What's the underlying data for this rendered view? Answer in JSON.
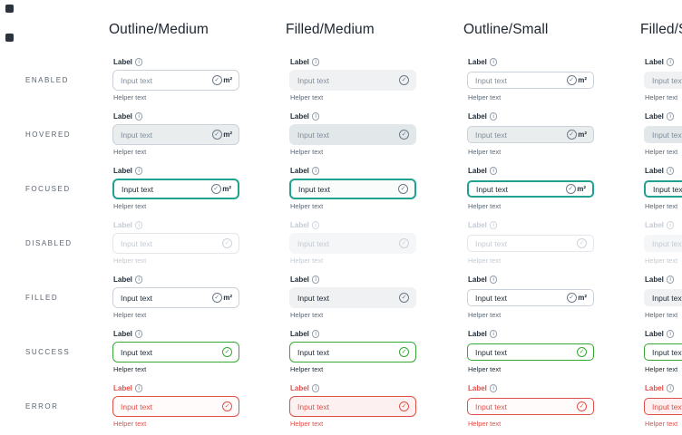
{
  "canvas": {
    "corner_icons": [
      {
        "name": "canvas-mark-icon"
      },
      {
        "name": "canvas-mark-icon"
      }
    ]
  },
  "columns": [
    {
      "header": "Outline/Medium",
      "variant": "outline",
      "size": "medium",
      "show_unit_suffix": true
    },
    {
      "header": "Filled/Medium",
      "variant": "filled",
      "size": "medium",
      "show_unit_suffix": false
    },
    {
      "header": "Outline/Small",
      "variant": "outline",
      "size": "small",
      "show_unit_suffix": true
    },
    {
      "header": "Filled/Small",
      "variant": "filled",
      "size": "small",
      "show_unit_suffix": false
    }
  ],
  "rows": [
    {
      "label": "ENABLED",
      "state": "enabled"
    },
    {
      "label": "HOVERED",
      "state": "hovered"
    },
    {
      "label": "FOCUSED",
      "state": "focused"
    },
    {
      "label": "DISABLED",
      "state": "disabled"
    },
    {
      "label": "FILLED",
      "state": "filled"
    },
    {
      "label": "SUCCESS",
      "state": "success"
    },
    {
      "label": "ERROR",
      "state": "error"
    }
  ],
  "field": {
    "label": "Label",
    "input_text": "Input text",
    "helper_text": "Helper text",
    "unit_suffix": "m²",
    "icons": {
      "info": "info-icon",
      "trailing": "check-circle-icon"
    }
  },
  "suffix_hidden_states": [
    "disabled",
    "success",
    "error"
  ],
  "colors": {
    "focus": "#21a190",
    "success": "#34a832",
    "error": "#e0504a",
    "text_primary": "#222d39",
    "text_placeholder": "#828d9b",
    "text_helper": "#5f6a78",
    "text_disabled": "#c4cbd3",
    "border_default": "#ccd2d9",
    "filled_bg": "#eff1f2"
  }
}
